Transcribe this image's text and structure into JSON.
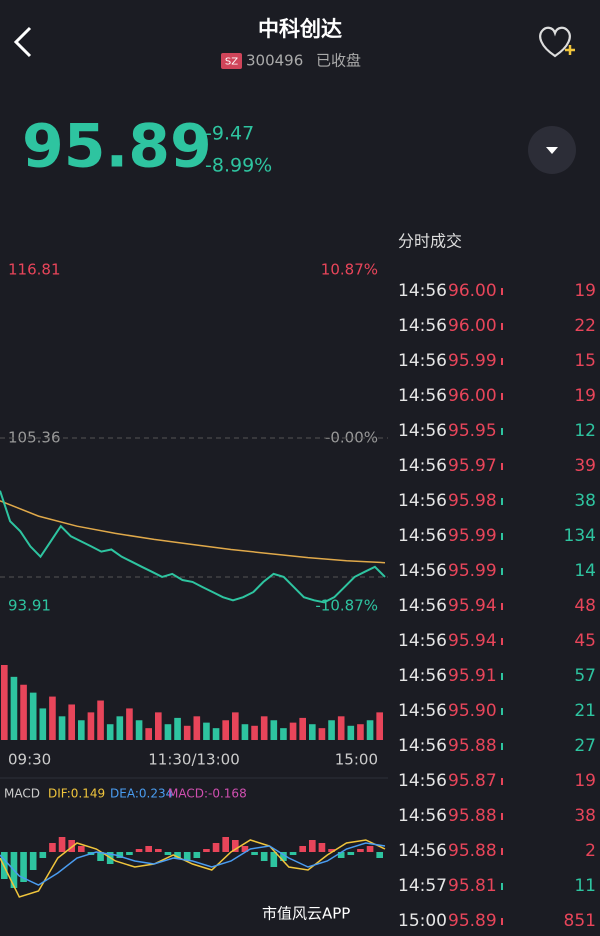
{
  "header": {
    "title": "中科创达",
    "market": "SZ",
    "code": "300496",
    "status": "已收盘"
  },
  "quote": {
    "price": "95.89",
    "change": "-9.47",
    "change_pct": "-8.99%"
  },
  "chart": {
    "ylim": [
      93.91,
      116.81
    ],
    "prev_close": 105.36,
    "high_pct": "10.87%",
    "prev_close_pct": "-0.00%",
    "low_pct": "-10.87%",
    "xlabels": [
      "09:30",
      "11:30/13:00",
      "15:00"
    ],
    "price_line": [
      101.77,
      99.69,
      99.0,
      97.97,
      97.27,
      98.31,
      99.35,
      98.66,
      98.31,
      97.97,
      97.62,
      97.76,
      97.27,
      96.93,
      96.58,
      96.24,
      95.89,
      96.1,
      95.68,
      95.55,
      95.2,
      94.86,
      94.51,
      94.3,
      94.51,
      94.86,
      95.55,
      96.1,
      95.89,
      95.2,
      94.51,
      94.3,
      94.16,
      94.51,
      95.2,
      95.89,
      96.24,
      96.58,
      95.89
    ],
    "avg_line": [
      101.08,
      100.04,
      99.35,
      98.86,
      98.45,
      98.1,
      97.76,
      97.48,
      97.21,
      97.0,
      96.86
    ],
    "price_color": "#2ec4a0",
    "avg_color": "#e0a94a",
    "volume": [
      95,
      80,
      70,
      60,
      40,
      55,
      30,
      45,
      25,
      35,
      50,
      20,
      30,
      40,
      25,
      15,
      35,
      20,
      28,
      18,
      30,
      22,
      15,
      25,
      35,
      20,
      18,
      30,
      25,
      15,
      22,
      28,
      20,
      15,
      25,
      30,
      18,
      20,
      25,
      35
    ],
    "volume_colors": [
      "#e8455a",
      "#2ec4a0",
      "#e8455a",
      "#2ec4a0",
      "#2ec4a0",
      "#e8455a",
      "#2ec4a0",
      "#e8455a",
      "#2ec4a0",
      "#e8455a",
      "#e8455a",
      "#2ec4a0",
      "#2ec4a0",
      "#e8455a",
      "#2ec4a0",
      "#e8455a",
      "#e8455a",
      "#2ec4a0",
      "#2ec4a0",
      "#e8455a",
      "#e8455a",
      "#2ec4a0",
      "#2ec4a0",
      "#e8455a",
      "#e8455a",
      "#2ec4a0",
      "#e8455a",
      "#e8455a",
      "#2ec4a0",
      "#2ec4a0",
      "#e8455a",
      "#e8455a",
      "#2ec4a0",
      "#e8455a",
      "#2ec4a0",
      "#e8455a",
      "#2ec4a0",
      "#e8455a",
      "#2ec4a0",
      "#e8455a"
    ]
  },
  "macd": {
    "label": "MACD",
    "dif": "DIF:0.149",
    "dea": "DEA:0.234",
    "macd": "MACD:-0.168",
    "dif_color": "#f0c53c",
    "dea_color": "#4a9cf0",
    "macd_color": "#d04fb0",
    "histogram": [
      -0.9,
      -1.2,
      -1.0,
      -0.6,
      -0.2,
      0.3,
      0.5,
      0.4,
      0.2,
      -0.1,
      -0.3,
      -0.4,
      -0.2,
      -0.1,
      0.1,
      0.2,
      0.1,
      -0.1,
      -0.2,
      -0.3,
      -0.2,
      0.1,
      0.3,
      0.5,
      0.4,
      0.2,
      -0.1,
      -0.3,
      -0.5,
      -0.3,
      -0.1,
      0.2,
      0.4,
      0.3,
      0.1,
      -0.2,
      -0.1,
      0.1,
      0.2,
      -0.2
    ],
    "dif_line": [
      -0.2,
      -1.5,
      -1.3,
      -0.2,
      0.3,
      0.1,
      -0.3,
      -0.5,
      -0.4,
      -0.1,
      -0.4,
      -0.6,
      0.0,
      0.4,
      0.2,
      -0.5,
      -0.6,
      -0.1,
      0.3,
      0.4,
      0.1
    ],
    "dea_line": [
      -0.1,
      -0.8,
      -1.1,
      -0.7,
      -0.2,
      0.0,
      -0.1,
      -0.3,
      -0.4,
      -0.2,
      -0.3,
      -0.5,
      -0.3,
      0.1,
      0.2,
      -0.2,
      -0.5,
      -0.3,
      0.1,
      0.3,
      0.2
    ]
  },
  "trades": {
    "title": "分时成交",
    "rows": [
      {
        "time": "14:56",
        "price": "96.00",
        "volume": 19,
        "color": "#e8455a"
      },
      {
        "time": "14:56",
        "price": "96.00",
        "volume": 22,
        "color": "#e8455a"
      },
      {
        "time": "14:56",
        "price": "95.99",
        "volume": 15,
        "color": "#e8455a"
      },
      {
        "time": "14:56",
        "price": "96.00",
        "volume": 19,
        "color": "#e8455a"
      },
      {
        "time": "14:56",
        "price": "95.95",
        "volume": 12,
        "color": "#2ec4a0"
      },
      {
        "time": "14:56",
        "price": "95.97",
        "volume": 39,
        "color": "#e8455a"
      },
      {
        "time": "14:56",
        "price": "95.98",
        "volume": 38,
        "color": "#2ec4a0"
      },
      {
        "time": "14:56",
        "price": "95.99",
        "volume": 134,
        "color": "#2ec4a0"
      },
      {
        "time": "14:56",
        "price": "95.99",
        "volume": 14,
        "color": "#2ec4a0"
      },
      {
        "time": "14:56",
        "price": "95.94",
        "volume": 48,
        "color": "#e8455a"
      },
      {
        "time": "14:56",
        "price": "95.94",
        "volume": 45,
        "color": "#e8455a"
      },
      {
        "time": "14:56",
        "price": "95.91",
        "volume": 57,
        "color": "#2ec4a0"
      },
      {
        "time": "14:56",
        "price": "95.90",
        "volume": 21,
        "color": "#2ec4a0"
      },
      {
        "time": "14:56",
        "price": "95.88",
        "volume": 27,
        "color": "#2ec4a0"
      },
      {
        "time": "14:56",
        "price": "95.87",
        "volume": 19,
        "color": "#e8455a"
      },
      {
        "time": "14:56",
        "price": "95.88",
        "volume": 38,
        "color": "#e8455a"
      },
      {
        "time": "14:56",
        "price": "95.88",
        "volume": 2,
        "color": "#e8455a"
      },
      {
        "time": "14:57",
        "price": "95.81",
        "volume": 11,
        "color": "#2ec4a0"
      },
      {
        "time": "15:00",
        "price": "95.89",
        "volume": 851,
        "color": "#e8455a"
      }
    ]
  },
  "watermark": "市值风云APP"
}
